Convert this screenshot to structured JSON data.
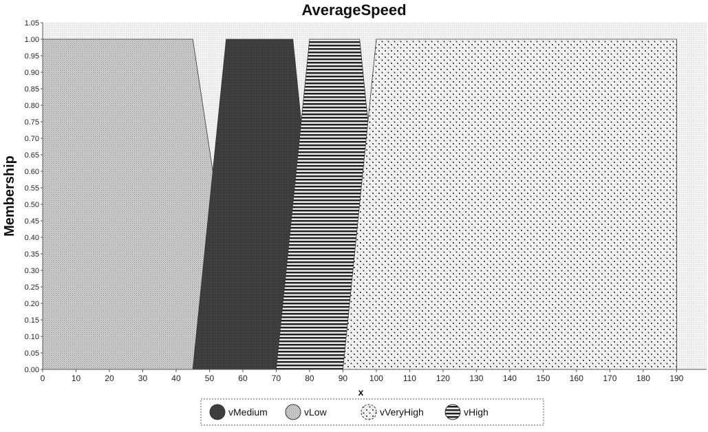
{
  "chart_data": {
    "type": "area",
    "title": "AverageSpeed",
    "xlabel": "x",
    "ylabel": "Membership",
    "xlim": [
      0,
      199
    ],
    "ylim": [
      0,
      1.05
    ],
    "xticks": [
      0,
      10,
      20,
      30,
      40,
      50,
      60,
      70,
      80,
      90,
      100,
      110,
      120,
      130,
      140,
      150,
      160,
      170,
      180,
      190
    ],
    "yticks": [
      "0.00",
      "0.05",
      "0.10",
      "0.15",
      "0.20",
      "0.25",
      "0.30",
      "0.35",
      "0.40",
      "0.45",
      "0.50",
      "0.55",
      "0.60",
      "0.65",
      "0.70",
      "0.75",
      "0.80",
      "0.85",
      "0.90",
      "0.95",
      "1.00",
      "1.05"
    ],
    "grid": true,
    "legend_position": "bottom",
    "series": [
      {
        "name": "vLow",
        "pattern": "fine-dots",
        "color": "#9a9a9a",
        "points": [
          [
            0,
            0
          ],
          [
            0,
            1
          ],
          [
            45,
            1
          ],
          [
            60,
            0
          ]
        ]
      },
      {
        "name": "vMedium",
        "pattern": "solid-dark",
        "color": "#3a3a3a",
        "points": [
          [
            45,
            0
          ],
          [
            55,
            1
          ],
          [
            75,
            1
          ],
          [
            85,
            0
          ]
        ]
      },
      {
        "name": "vHigh",
        "pattern": "horizontal-lines",
        "color": "#222222",
        "points": [
          [
            70,
            0
          ],
          [
            80,
            1
          ],
          [
            95,
            1
          ],
          [
            105,
            0
          ]
        ]
      },
      {
        "name": "vVeryHigh",
        "pattern": "dotted-grid",
        "color": "#555555",
        "points": [
          [
            90,
            0
          ],
          [
            100,
            1
          ],
          [
            190,
            1
          ],
          [
            190,
            0
          ]
        ]
      }
    ],
    "legend_order": [
      "vMedium",
      "vLow",
      "vVeryHigh",
      "vHigh"
    ]
  }
}
